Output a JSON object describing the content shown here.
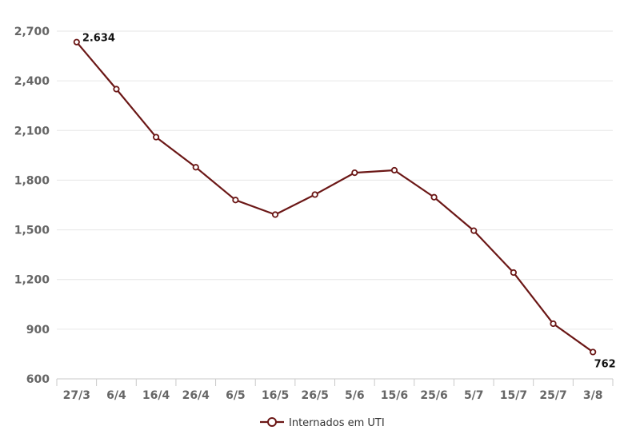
{
  "chart_data": {
    "type": "line",
    "categories": [
      "27/3",
      "6/4",
      "16/4",
      "26/4",
      "6/5",
      "16/5",
      "26/5",
      "5/6",
      "15/6",
      "25/6",
      "5/7",
      "15/7",
      "25/7",
      "3/8"
    ],
    "series": [
      {
        "name": "Internados em UTI",
        "values": [
          2634,
          2350,
          2060,
          1878,
          1680,
          1592,
          1713,
          1845,
          1860,
          1697,
          1495,
          1242,
          933,
          762
        ],
        "color": "#6b1716"
      }
    ],
    "ylim": [
      600,
      2700
    ],
    "yticks": [
      "600",
      "900",
      "1,200",
      "1,500",
      "1,800",
      "2,100",
      "2,400",
      "2,700"
    ],
    "ytick_values": [
      600,
      900,
      1200,
      1500,
      1800,
      2100,
      2400,
      2700
    ],
    "data_labels": [
      {
        "index": 0,
        "text": "2.634"
      },
      {
        "index": 13,
        "text": "762"
      }
    ],
    "grid": true,
    "legend_position": "bottom-center",
    "title": "",
    "xlabel": "",
    "ylabel": ""
  }
}
